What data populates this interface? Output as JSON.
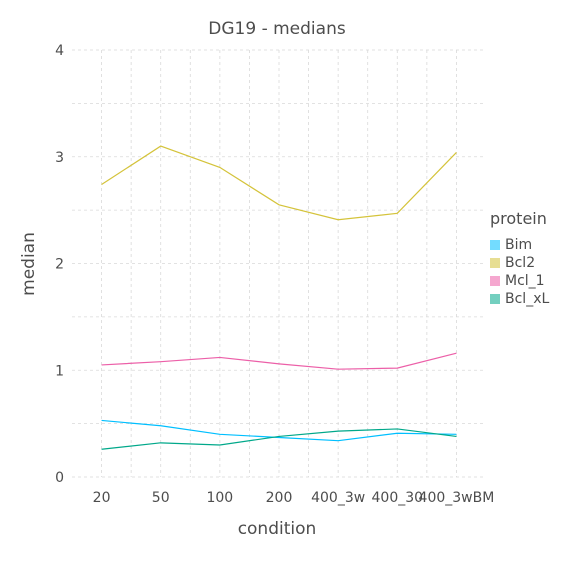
{
  "chart_data": {
    "type": "line",
    "title": "DG19 - medians",
    "xlabel": "condition",
    "ylabel": "median",
    "categories": [
      "20",
      "50",
      "100",
      "200",
      "400_3w",
      "400_30",
      "400_3wBM"
    ],
    "ylim": [
      0,
      4
    ],
    "yticks": [
      0,
      1,
      2,
      3,
      4
    ],
    "grid": true,
    "legend": {
      "title": "protein",
      "position": "right"
    },
    "series": [
      {
        "name": "Bim",
        "color": "#00bfff",
        "values": [
          0.53,
          0.48,
          0.4,
          0.37,
          0.34,
          0.41,
          0.4
        ]
      },
      {
        "name": "Bcl2",
        "color": "#d4c33a",
        "values": [
          2.74,
          3.1,
          2.9,
          2.55,
          2.41,
          2.47,
          3.04
        ]
      },
      {
        "name": "Mcl_1",
        "color": "#ec5fa8",
        "values": [
          1.05,
          1.08,
          1.12,
          1.06,
          1.01,
          1.02,
          1.16
        ]
      },
      {
        "name": "Bcl_xL",
        "color": "#00a88a",
        "values": [
          0.26,
          0.32,
          0.3,
          0.38,
          0.43,
          0.45,
          0.38
        ]
      }
    ]
  }
}
